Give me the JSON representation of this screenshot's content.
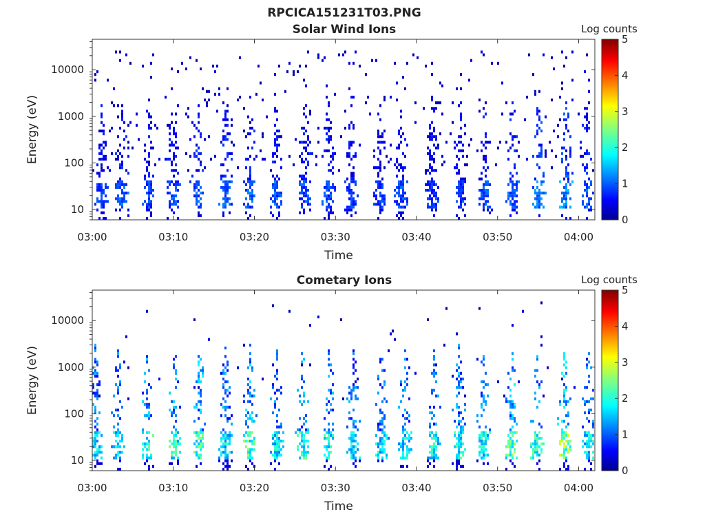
{
  "figure_title": "RPCICA151231T03.PNG",
  "chart_data": [
    {
      "type": "heatmap",
      "title": "Solar Wind Ions",
      "xlabel": "Time",
      "ylabel": "Energy (eV)",
      "y_scale": "log",
      "ylim": [
        6,
        45000
      ],
      "xlim": [
        "03:00",
        "04:02"
      ],
      "x_ticks": [
        "03:00",
        "03:10",
        "03:20",
        "03:30",
        "03:40",
        "03:50",
        "04:00"
      ],
      "y_ticks": [
        "10",
        "100",
        "1000",
        "10000"
      ],
      "y_tick_values": [
        10,
        100,
        1000,
        10000
      ],
      "colorbar": {
        "label": "Log counts",
        "range": [
          0,
          5
        ],
        "ticks": [
          "0",
          "1",
          "2",
          "3",
          "4",
          "5"
        ],
        "colormap": "jet"
      },
      "grid": false,
      "x_start": "03:00",
      "bursts": [
        {
          "t": 1.2,
          "level": 1.0
        },
        {
          "t": 3.7,
          "level": 1.2
        },
        {
          "t": 7.0,
          "level": 1.1
        },
        {
          "t": 10.0,
          "level": 1.1
        },
        {
          "t": 13.0,
          "level": 1.2
        },
        {
          "t": 16.5,
          "level": 1.2
        },
        {
          "t": 19.5,
          "level": 1.2
        },
        {
          "t": 22.7,
          "level": 1.2
        },
        {
          "t": 26.3,
          "level": 1.1
        },
        {
          "t": 29.2,
          "level": 1.1
        },
        {
          "t": 32.0,
          "level": 1.0
        },
        {
          "t": 35.5,
          "level": 1.0
        },
        {
          "t": 38.2,
          "level": 1.1
        },
        {
          "t": 42.0,
          "level": 1.0
        },
        {
          "t": 45.5,
          "level": 1.0
        },
        {
          "t": 48.5,
          "level": 1.1
        },
        {
          "t": 52.0,
          "level": 1.2
        },
        {
          "t": 55.2,
          "level": 1.4
        },
        {
          "t": 58.5,
          "level": 1.5
        },
        {
          "t": 61.0,
          "level": 1.2
        }
      ],
      "scatter_density": 0.16,
      "scatter_min_energy": 60
    },
    {
      "type": "heatmap",
      "title": "Cometary Ions",
      "xlabel": "Time",
      "ylabel": "Energy (eV)",
      "y_scale": "log",
      "ylim": [
        6,
        45000
      ],
      "xlim": [
        "03:00",
        "04:02"
      ],
      "x_ticks": [
        "03:00",
        "03:10",
        "03:20",
        "03:30",
        "03:40",
        "03:50",
        "04:00"
      ],
      "y_ticks": [
        "10",
        "100",
        "1000",
        "10000"
      ],
      "y_tick_values": [
        10,
        100,
        1000,
        10000
      ],
      "colorbar": {
        "label": "Log counts",
        "range": [
          0,
          5
        ],
        "ticks": [
          "0",
          "1",
          "2",
          "3",
          "4",
          "5"
        ],
        "colormap": "jet"
      },
      "grid": false,
      "x_start": "03:00",
      "bursts": [
        {
          "t": 0.4,
          "level": 2.0
        },
        {
          "t": 3.2,
          "level": 2.0
        },
        {
          "t": 6.8,
          "level": 2.2
        },
        {
          "t": 10.2,
          "level": 2.3
        },
        {
          "t": 13.3,
          "level": 2.4
        },
        {
          "t": 16.5,
          "level": 2.0
        },
        {
          "t": 19.5,
          "level": 2.4
        },
        {
          "t": 22.8,
          "level": 2.0
        },
        {
          "t": 26.0,
          "level": 2.3
        },
        {
          "t": 29.3,
          "level": 2.1
        },
        {
          "t": 32.3,
          "level": 2.0
        },
        {
          "t": 35.8,
          "level": 1.9
        },
        {
          "t": 38.7,
          "level": 2.0
        },
        {
          "t": 42.2,
          "level": 2.1
        },
        {
          "t": 45.3,
          "level": 2.2
        },
        {
          "t": 48.3,
          "level": 2.1
        },
        {
          "t": 51.8,
          "level": 2.5
        },
        {
          "t": 55.0,
          "level": 2.4
        },
        {
          "t": 58.3,
          "level": 2.8
        },
        {
          "t": 61.3,
          "level": 2.0
        }
      ],
      "scatter_density": 0.04,
      "scatter_min_energy": 200
    }
  ]
}
